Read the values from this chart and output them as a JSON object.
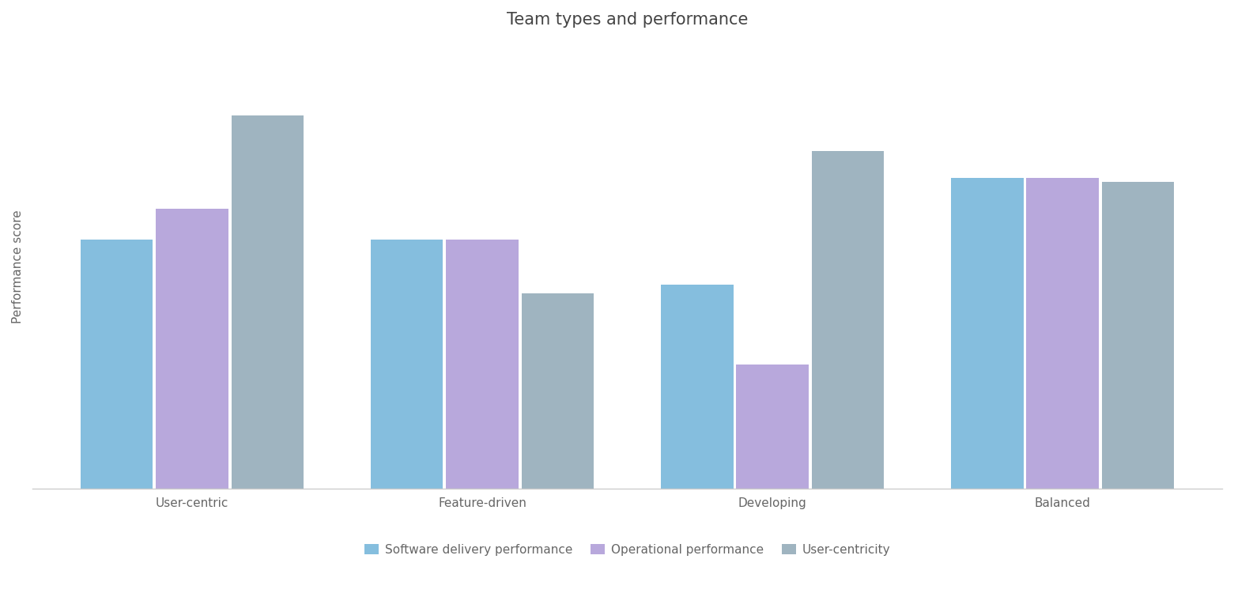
{
  "title": "Team types and performance",
  "categories": [
    "User-centric",
    "Feature-driven",
    "Developing",
    "Balanced"
  ],
  "series": {
    "Software delivery performance": [
      0.56,
      0.56,
      0.46,
      0.7
    ],
    "Operational performance": [
      0.63,
      0.56,
      0.28,
      0.7
    ],
    "User-centricity": [
      0.84,
      0.44,
      0.76,
      0.69
    ]
  },
  "colors": {
    "Software delivery performance": "#85bede",
    "Operational performance": "#b8a8dc",
    "User-centricity": "#9fb4c0"
  },
  "ylabel": "Performance score",
  "ylim": [
    0,
    1.0
  ],
  "background_color": "#ffffff",
  "grid_color": "#cccccc",
  "bar_width": 0.26,
  "title_fontsize": 15,
  "axis_label_fontsize": 11,
  "tick_fontsize": 11,
  "legend_fontsize": 11
}
